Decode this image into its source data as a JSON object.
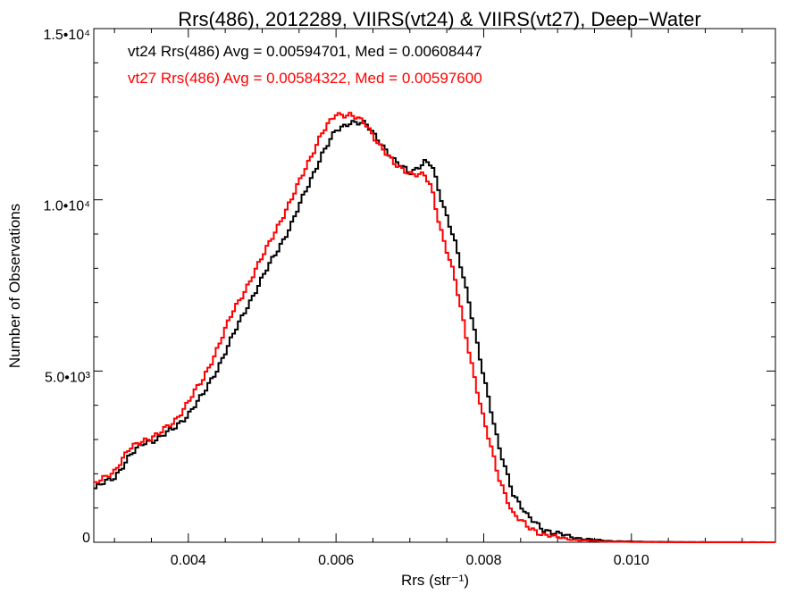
{
  "chart_data": {
    "type": "line",
    "title": "Rrs(486), 2012289, VIIRS(vt24) & VIIRS(vt27), Deep−Water",
    "xlabel": "Rrs (str⁻¹)",
    "ylabel": "Number of Observations",
    "xlim": [
      0.00272,
      0.01195
    ],
    "ylim": [
      0,
      15000
    ],
    "x_ticks": [
      0.004,
      0.006,
      0.008,
      0.01
    ],
    "x_tick_labels": [
      "0.004",
      "0.006",
      "0.008",
      "0.010"
    ],
    "y_ticks": [
      0,
      5000,
      10000,
      15000
    ],
    "y_tick_labels": [
      "0",
      "5.0•10³",
      "1.0•10⁴",
      "1.5•10⁴"
    ],
    "grid": false,
    "legend_placement": "top-left",
    "series": [
      {
        "name": "vt24 Rrs(486) Avg = 0.00594701, Med = 0.00608447",
        "color": "#000000",
        "x": [
          0.00272,
          0.003,
          0.0032,
          0.0034,
          0.0036,
          0.0038,
          0.004,
          0.0042,
          0.0044,
          0.0046,
          0.0048,
          0.005,
          0.0052,
          0.0054,
          0.0056,
          0.0058,
          0.006,
          0.0062,
          0.0064,
          0.0066,
          0.0068,
          0.007,
          0.0072,
          0.0073,
          0.0074,
          0.0076,
          0.0078,
          0.008,
          0.0082,
          0.0084,
          0.0086,
          0.0088,
          0.009,
          0.0092,
          0.0094,
          0.0096,
          0.0098,
          0.01,
          0.0102,
          0.0104,
          0.0106,
          0.011,
          0.0115,
          0.01195
        ],
        "y": [
          1550,
          1900,
          2500,
          2900,
          3050,
          3300,
          3750,
          4300,
          5100,
          6000,
          6900,
          7700,
          8500,
          9300,
          10300,
          11300,
          12000,
          12300,
          12200,
          11700,
          11100,
          10800,
          11100,
          11000,
          10200,
          8900,
          7000,
          4900,
          2800,
          1450,
          720,
          400,
          250,
          150,
          90,
          50,
          30,
          20,
          15,
          10,
          6,
          4,
          2,
          1
        ]
      },
      {
        "name": "vt27 Rrs(486) Avg = 0.00584322, Med = 0.00597600",
        "color": "#ff0000",
        "x": [
          0.00272,
          0.003,
          0.0032,
          0.0034,
          0.0036,
          0.0038,
          0.004,
          0.0042,
          0.0044,
          0.0046,
          0.0048,
          0.005,
          0.0052,
          0.0054,
          0.0056,
          0.0058,
          0.006,
          0.0062,
          0.0064,
          0.0066,
          0.0068,
          0.007,
          0.0072,
          0.0073,
          0.0074,
          0.0076,
          0.0078,
          0.008,
          0.0082,
          0.0084,
          0.0086,
          0.0088,
          0.009,
          0.0092,
          0.0094,
          0.0096,
          0.0098,
          0.01,
          0.0102,
          0.0104,
          0.0106,
          0.011,
          0.0115,
          0.01195
        ],
        "y": [
          1650,
          2100,
          2700,
          3000,
          3150,
          3500,
          4100,
          4750,
          5700,
          6700,
          7500,
          8300,
          9200,
          10000,
          11000,
          11900,
          12500,
          12500,
          12200,
          11600,
          11000,
          10800,
          10700,
          10300,
          9300,
          7800,
          5600,
          3600,
          1900,
          850,
          420,
          250,
          140,
          80,
          45,
          25,
          15,
          10,
          6,
          4,
          2,
          1,
          0,
          0
        ]
      }
    ]
  }
}
